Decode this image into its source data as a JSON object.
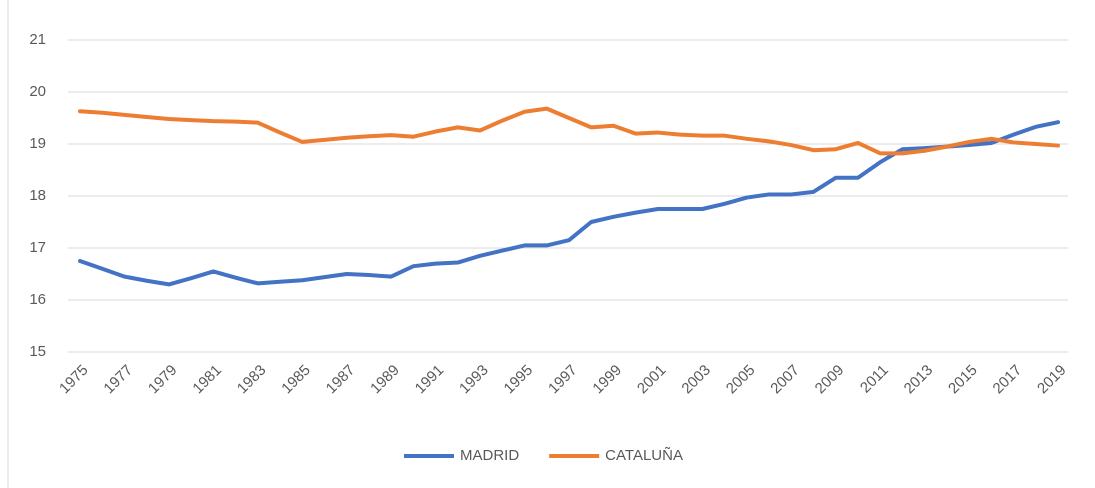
{
  "chart_data": {
    "type": "line",
    "x": [
      1975,
      1976,
      1977,
      1978,
      1979,
      1980,
      1981,
      1982,
      1983,
      1984,
      1985,
      1986,
      1987,
      1988,
      1989,
      1990,
      1991,
      1992,
      1993,
      1994,
      1995,
      1996,
      1997,
      1998,
      1999,
      2000,
      2001,
      2002,
      2003,
      2004,
      2005,
      2006,
      2007,
      2008,
      2009,
      2010,
      2011,
      2012,
      2013,
      2014,
      2015,
      2016,
      2017,
      2018,
      2019
    ],
    "series": [
      {
        "name": "MADRID",
        "color": "#4472c4",
        "values": [
          16.75,
          16.6,
          16.45,
          16.37,
          16.3,
          16.42,
          16.55,
          16.43,
          16.32,
          16.35,
          16.38,
          16.44,
          16.5,
          16.48,
          16.45,
          16.65,
          16.7,
          16.72,
          16.85,
          16.95,
          17.05,
          17.05,
          17.15,
          17.5,
          17.6,
          17.68,
          17.75,
          17.75,
          17.75,
          17.85,
          17.97,
          18.03,
          18.03,
          18.08,
          18.35,
          18.35,
          18.65,
          18.9,
          18.92,
          18.95,
          18.98,
          19.02,
          19.18,
          19.33,
          19.42
        ]
      },
      {
        "name": "CATALUÑA",
        "color": "#ed7d31",
        "values": [
          19.63,
          19.6,
          19.56,
          19.52,
          19.48,
          19.46,
          19.44,
          19.43,
          19.41,
          19.22,
          19.04,
          19.08,
          19.12,
          19.15,
          19.17,
          19.14,
          19.24,
          19.32,
          19.26,
          19.45,
          19.62,
          19.68,
          19.5,
          19.32,
          19.35,
          19.2,
          19.22,
          19.18,
          19.16,
          19.16,
          19.1,
          19.05,
          18.98,
          18.88,
          18.9,
          19.02,
          18.82,
          18.82,
          18.87,
          18.95,
          19.04,
          19.1,
          19.03,
          19.0,
          18.97
        ]
      }
    ],
    "xlim": [
      1975,
      2019
    ],
    "xticks": [
      1975,
      1977,
      1979,
      1981,
      1983,
      1985,
      1987,
      1989,
      1991,
      1993,
      1995,
      1997,
      1999,
      2001,
      2003,
      2005,
      2007,
      2009,
      2011,
      2013,
      2015,
      2017,
      2019
    ],
    "ylim": [
      15,
      21
    ],
    "yticks": [
      15,
      16,
      17,
      18,
      19,
      20,
      21
    ],
    "grid": true,
    "legend": "bottom"
  }
}
